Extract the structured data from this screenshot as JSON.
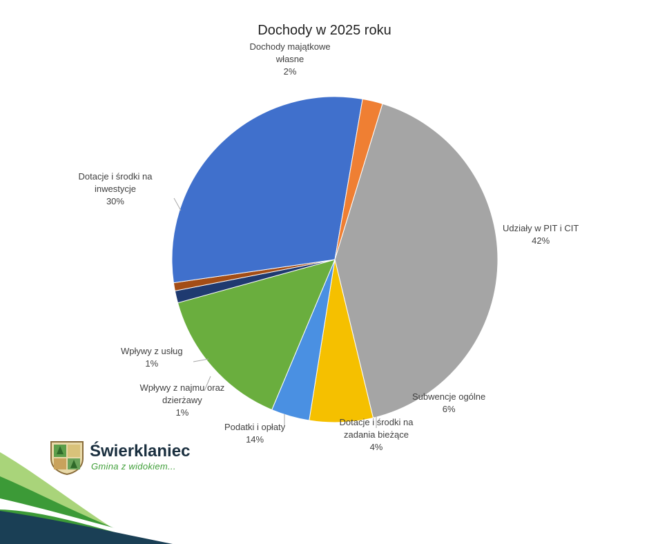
{
  "chart_data": {
    "type": "pie",
    "title": "Dochody w 2025 roku",
    "start_angle_deg": 73,
    "direction": "clockwise",
    "slices": [
      {
        "label_lines": [
          "Udziały w PIT i CIT"
        ],
        "pct_label": "42%",
        "value": 41.5,
        "color": "#a5a5a5"
      },
      {
        "label_lines": [
          "Subwencje ogólne"
        ],
        "pct_label": "6%",
        "value": 6.3,
        "color": "#f5c000"
      },
      {
        "label_lines": [
          "Dotacje i środki na",
          "zadania bieżące"
        ],
        "pct_label": "4%",
        "value": 3.8,
        "color": "#4a90e2"
      },
      {
        "label_lines": [
          "Podatki i opłaty"
        ],
        "pct_label": "14%",
        "value": 14.4,
        "color": "#6aae3e"
      },
      {
        "label_lines": [
          "Wpływy z najmu oraz",
          "dzierżawy"
        ],
        "pct_label": "1%",
        "value": 1.2,
        "color": "#1f3a70"
      },
      {
        "label_lines": [
          "Wpływy z usług"
        ],
        "pct_label": "1%",
        "value": 0.8,
        "color": "#a34d16"
      },
      {
        "label_lines": [
          "Dotacje i środki na",
          "inwestycje"
        ],
        "pct_label": "30%",
        "value": 30.0,
        "color": "#4070cc"
      },
      {
        "label_lines": [
          "Dochody majątkowe",
          "własne"
        ],
        "pct_label": "2%",
        "value": 2.0,
        "color": "#ef7f33"
      }
    ]
  },
  "logo": {
    "name": "Świerklaniec",
    "tagline": "Gmina z widokiem...",
    "colors": {
      "dark_band": "#1a3f55",
      "green_band": "#3c9a37",
      "light_green_band": "#9dcc6a"
    }
  }
}
